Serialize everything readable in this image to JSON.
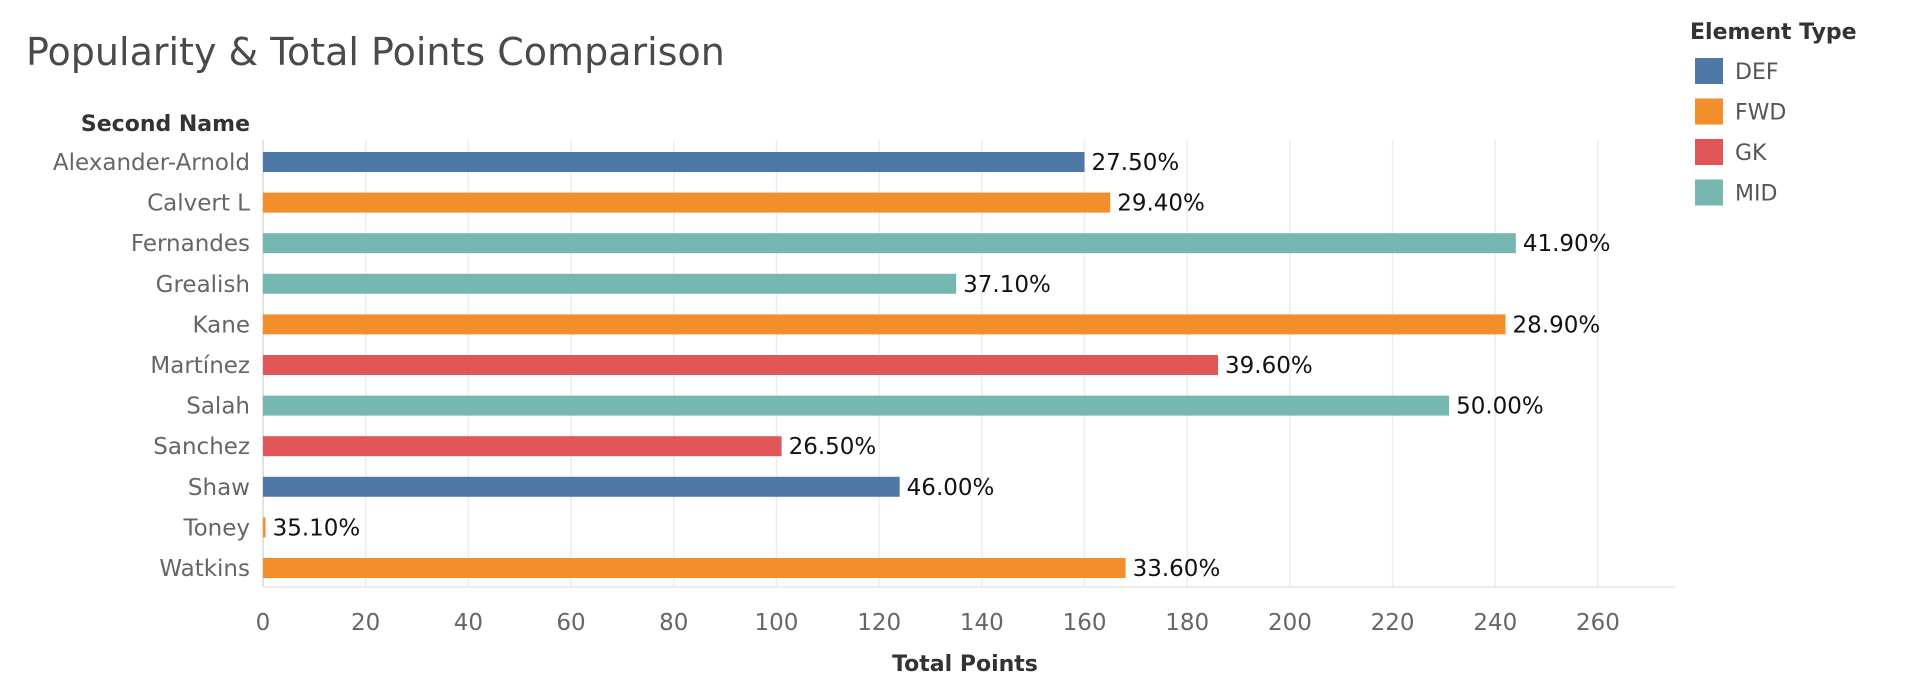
{
  "chart_data": {
    "type": "bar",
    "orientation": "horizontal",
    "title": "Popularity & Total Points Comparison",
    "row_axis_label": "Second Name",
    "xlabel": "Total Points",
    "xlim": [
      0,
      275
    ],
    "x_ticks": [
      "0",
      "20",
      "40",
      "60",
      "80",
      "100",
      "120",
      "140",
      "160",
      "180",
      "200",
      "220",
      "240",
      "260"
    ],
    "gridlines": "vertical",
    "legend": {
      "title": "Element Type",
      "placement": "top-right",
      "entries": [
        {
          "name": "DEF",
          "color": "#4e79a7"
        },
        {
          "name": "FWD",
          "color": "#f28e2b"
        },
        {
          "name": "GK",
          "color": "#e15759"
        },
        {
          "name": "MID",
          "color": "#76b7b2"
        }
      ]
    },
    "categories": [
      "Alexander-Arnold",
      "Calvert L",
      "Fernandes",
      "Grealish",
      "Kane",
      "Martínez",
      "Salah",
      "Sanchez",
      "Shaw",
      "Toney",
      "Watkins"
    ],
    "values": [
      160,
      165,
      244,
      135,
      242,
      186,
      231,
      101,
      124,
      0.5,
      168
    ],
    "element_types": [
      "DEF",
      "FWD",
      "MID",
      "MID",
      "FWD",
      "GK",
      "MID",
      "GK",
      "DEF",
      "FWD",
      "FWD"
    ],
    "data_labels": [
      "27.50%",
      "29.40%",
      "41.90%",
      "37.10%",
      "28.90%",
      "39.60%",
      "50.00%",
      "26.50%",
      "46.00%",
      "35.10%",
      "33.60%"
    ]
  }
}
